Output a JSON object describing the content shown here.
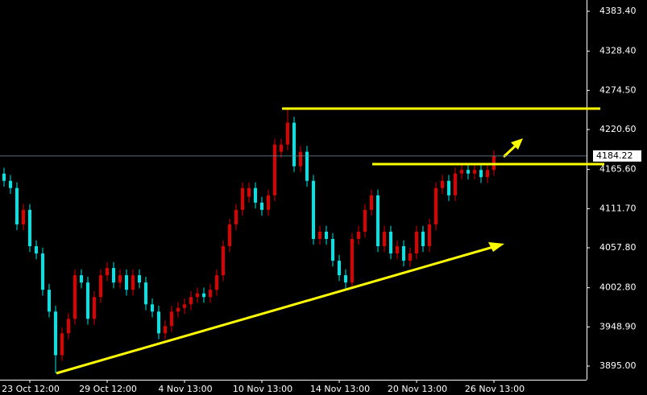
{
  "chart_data": {
    "type": "candlestick",
    "categories": [
      null,
      null,
      null,
      null,
      "23 Oct 12:00",
      null,
      null,
      null,
      null,
      null,
      null,
      null,
      null,
      null,
      null,
      null,
      "29 Oct 12:00",
      null,
      null,
      null,
      null,
      null,
      null,
      null,
      null,
      null,
      null,
      null,
      "4 Nov 13:00",
      null,
      null,
      null,
      null,
      null,
      null,
      null,
      null,
      null,
      null,
      null,
      "10 Nov 13:00",
      null,
      null,
      null,
      null,
      null,
      null,
      null,
      null,
      null,
      null,
      null,
      "14 Nov 13:00",
      null,
      null,
      null,
      null,
      null,
      null,
      null,
      null,
      null,
      null,
      null,
      "20 Nov 13:00",
      null,
      null,
      null,
      null,
      null,
      null,
      null,
      null,
      null,
      null,
      null,
      "26 Nov 13:00"
    ],
    "open": [
      4160,
      4150,
      4140,
      4090,
      4110,
      4060,
      4050,
      4000,
      3970,
      3910,
      3940,
      3960,
      4020,
      4010,
      3960,
      3990,
      4020,
      4030,
      4010,
      4020,
      4000,
      4020,
      4010,
      3980,
      3970,
      3940,
      3950,
      3970,
      3975,
      3980,
      3990,
      3995,
      3990,
      4000,
      4020,
      4060,
      4090,
      4110,
      4128,
      4140,
      4120,
      4110,
      4130,
      4190,
      4200,
      4230,
      4170,
      4190,
      4150,
      4070,
      4080,
      4070,
      4040,
      4020,
      4010,
      4070,
      4080,
      4110,
      4130,
      4060,
      4080,
      4050,
      4060,
      4040,
      4050,
      4080,
      4060,
      4090,
      4140,
      4150,
      4130,
      4160,
      4165,
      4160,
      4165,
      4155,
      4165
    ],
    "high": [
      4168,
      4158,
      4148,
      4118,
      4118,
      4068,
      4058,
      4008,
      3978,
      3948,
      3968,
      4028,
      4028,
      4018,
      3998,
      4028,
      4038,
      4038,
      4028,
      4028,
      4028,
      4028,
      4018,
      3988,
      3978,
      3958,
      3978,
      3983,
      3988,
      3998,
      4003,
      4003,
      4008,
      4028,
      4068,
      4098,
      4118,
      4148,
      4148,
      4148,
      4128,
      4138,
      4208,
      4208,
      4248,
      4238,
      4198,
      4198,
      4158,
      4088,
      4088,
      4078,
      4048,
      4028,
      4078,
      4088,
      4118,
      4138,
      4138,
      4088,
      4088,
      4068,
      4068,
      4058,
      4088,
      4088,
      4098,
      4148,
      4158,
      4158,
      4168,
      4173,
      4173,
      4173,
      4173,
      4173,
      4192
    ],
    "low": [
      4142,
      4132,
      4082,
      4082,
      4052,
      4042,
      3992,
      3962,
      3885,
      3902,
      3932,
      3952,
      4002,
      3952,
      3952,
      3982,
      4012,
      4002,
      4002,
      3992,
      3992,
      4002,
      3972,
      3962,
      3932,
      3932,
      3942,
      3962,
      3967,
      3972,
      3982,
      3982,
      3982,
      3992,
      4012,
      4052,
      4082,
      4102,
      4120,
      4112,
      4102,
      4102,
      4122,
      4182,
      4192,
      4162,
      4162,
      4142,
      4062,
      4062,
      4062,
      4032,
      4012,
      4002,
      4002,
      4062,
      4072,
      4102,
      4052,
      4052,
      4042,
      4042,
      4032,
      4032,
      4042,
      4052,
      4052,
      4082,
      4132,
      4122,
      4122,
      4152,
      4152,
      4152,
      4147,
      4147,
      4157
    ],
    "close": [
      4150,
      4140,
      4090,
      4110,
      4060,
      4050,
      4000,
      3970,
      3910,
      3940,
      3960,
      4020,
      4010,
      3960,
      3990,
      4020,
      4030,
      4010,
      4020,
      4000,
      4020,
      4010,
      3980,
      3970,
      3940,
      3950,
      3970,
      3975,
      3980,
      3990,
      3995,
      3990,
      4000,
      4020,
      4060,
      4090,
      4110,
      4140,
      4140,
      4120,
      4110,
      4130,
      4200,
      4200,
      4230,
      4170,
      4190,
      4150,
      4070,
      4080,
      4070,
      4040,
      4020,
      4010,
      4070,
      4080,
      4110,
      4130,
      4060,
      4080,
      4050,
      4060,
      4040,
      4050,
      4080,
      4060,
      4090,
      4140,
      4150,
      4130,
      4160,
      4165,
      4160,
      4165,
      4155,
      4165,
      4184.22
    ],
    "up_color": "#e00000",
    "down_color": "#00e5e5",
    "ylim": [
      3876.2,
      4398.9
    ],
    "yticks": [
      {
        "value": 3895,
        "label": "3895.00"
      },
      {
        "value": 3948.9,
        "label": "3948.90"
      },
      {
        "value": 4002.8,
        "label": "4002.80"
      },
      {
        "value": 4057.8,
        "label": "4057.80"
      },
      {
        "value": 4111.7,
        "label": "4111.70"
      },
      {
        "value": 4165.6,
        "label": "4165.60"
      },
      {
        "value": 4220.6,
        "label": "4220.60"
      },
      {
        "value": 4274.5,
        "label": "4274.50"
      },
      {
        "value": 4328.4,
        "label": "4328.40"
      },
      {
        "value": 4383.4,
        "label": "4383.40"
      }
    ],
    "grid": false
  }
}
